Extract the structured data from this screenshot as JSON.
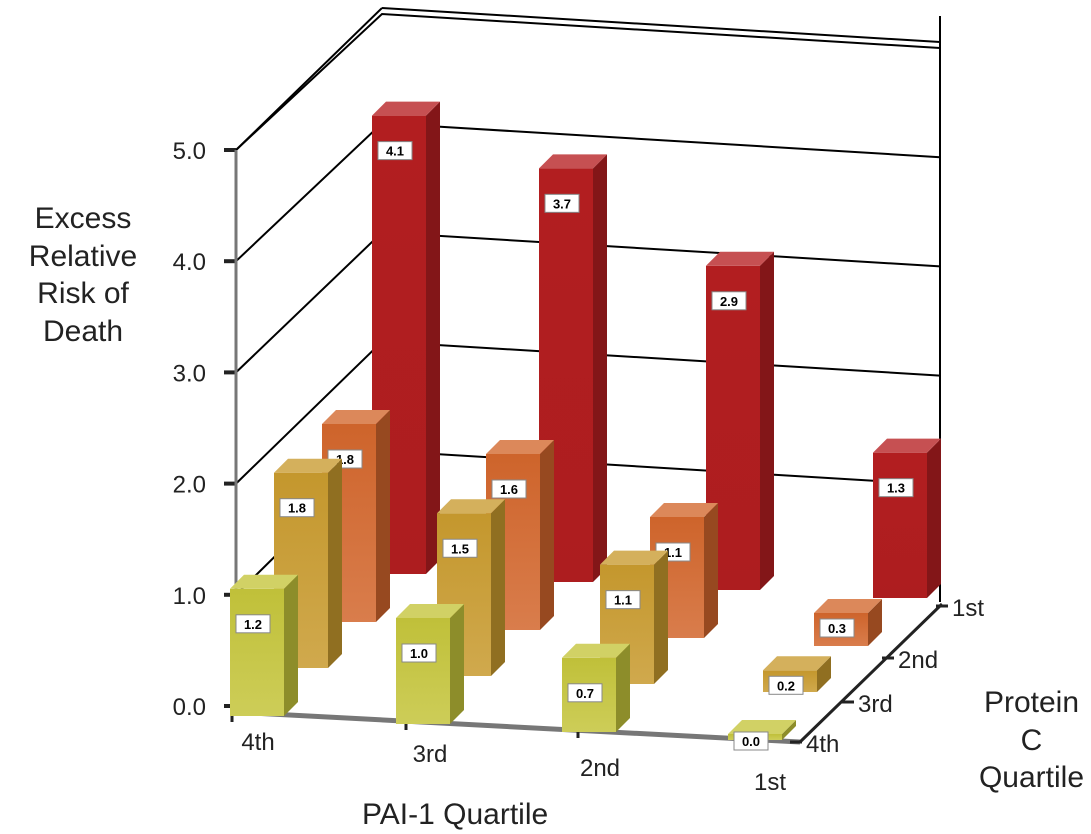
{
  "chart_data": {
    "type": "bar",
    "subtype": "3d-bar",
    "ylabel": "Excess Relative Risk of Death",
    "xlabel": "PAI-1 Quartile",
    "zlabel": "Protein C Quartile",
    "ylim": [
      0,
      5
    ],
    "y_ticks": [
      "0.0",
      "1.0",
      "2.0",
      "3.0",
      "4.0",
      "5.0"
    ],
    "categories": [
      "4th",
      "3rd",
      "2nd",
      "1st"
    ],
    "z_categories": [
      "1st",
      "2nd",
      "3rd",
      "4th"
    ],
    "grid": true,
    "series": [
      {
        "name": "1st",
        "values": [
          4.1,
          3.7,
          2.9,
          1.3
        ],
        "labels": [
          "4.1",
          "3.7",
          "2.9",
          "1.3"
        ],
        "color": "#b61f21"
      },
      {
        "name": "2nd",
        "values": [
          1.8,
          1.6,
          1.1,
          0.3
        ],
        "labels": [
          "1.8",
          "1.6",
          "1.1",
          "0.3"
        ],
        "color": "#d2662c"
      },
      {
        "name": "3rd",
        "values": [
          1.8,
          1.5,
          1.1,
          0.2
        ],
        "labels": [
          "1.8",
          "1.5",
          "1.1",
          "0.2"
        ],
        "color": "#c89a2e"
      },
      {
        "name": "4th",
        "values": [
          1.2,
          1.0,
          0.7,
          0.0
        ],
        "labels": [
          "1.2",
          "1.0",
          "0.7",
          "0.0"
        ],
        "color": "#c4c43a"
      }
    ]
  }
}
